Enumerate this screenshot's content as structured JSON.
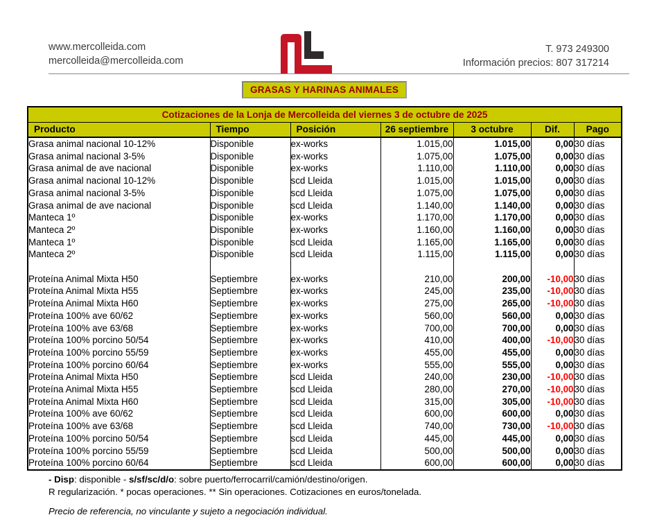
{
  "header": {
    "website": "www.mercolleida.com",
    "email": "mercolleida@mercolleida.com",
    "phone": "T. 973 249300",
    "price_info": "Información precios: 807 317214"
  },
  "badge": {
    "label": "GRASAS Y HARINAS ANIMALES"
  },
  "table": {
    "title": "Cotizaciones de la Lonja de Mercolleida del viernes 3 de octubre de 2025",
    "columns": [
      "Producto",
      "Tiempo",
      "Posición",
      "26 septiembre",
      "3 octubre",
      "Dif.",
      "Pago"
    ],
    "groups": [
      {
        "rows": [
          {
            "producto": "Grasa animal nacional 10-12%",
            "tiempo": "Disponible",
            "posicion": "ex-works",
            "sep26": "1.015,00",
            "oct3": "1.015,00",
            "dif": "0,00",
            "dif_negative": false,
            "pago": "30 días"
          },
          {
            "producto": "Grasa animal nacional 3-5%",
            "tiempo": "Disponible",
            "posicion": "ex-works",
            "sep26": "1.075,00",
            "oct3": "1.075,00",
            "dif": "0,00",
            "dif_negative": false,
            "pago": "30 días"
          },
          {
            "producto": "Grasa animal de ave nacional",
            "tiempo": "Disponible",
            "posicion": "ex-works",
            "sep26": "1.110,00",
            "oct3": "1.110,00",
            "dif": "0,00",
            "dif_negative": false,
            "pago": "30 días"
          },
          {
            "producto": "Grasa animal nacional 10-12%",
            "tiempo": "Disponible",
            "posicion": "scd Lleida",
            "sep26": "1.015,00",
            "oct3": "1.015,00",
            "dif": "0,00",
            "dif_negative": false,
            "pago": "30 días"
          },
          {
            "producto": "Grasa animal nacional 3-5%",
            "tiempo": "Disponible",
            "posicion": "scd Lleida",
            "sep26": "1.075,00",
            "oct3": "1.075,00",
            "dif": "0,00",
            "dif_negative": false,
            "pago": "30 días"
          },
          {
            "producto": "Grasa animal de ave nacional",
            "tiempo": "Disponible",
            "posicion": "scd Lleida",
            "sep26": "1.140,00",
            "oct3": "1.140,00",
            "dif": "0,00",
            "dif_negative": false,
            "pago": "30 días"
          },
          {
            "producto": "Manteca 1º",
            "tiempo": "Disponible",
            "posicion": "ex-works",
            "sep26": "1.170,00",
            "oct3": "1.170,00",
            "dif": "0,00",
            "dif_negative": false,
            "pago": "30 días"
          },
          {
            "producto": "Manteca 2º",
            "tiempo": "Disponible",
            "posicion": "ex-works",
            "sep26": "1.160,00",
            "oct3": "1.160,00",
            "dif": "0,00",
            "dif_negative": false,
            "pago": "30 días"
          },
          {
            "producto": "Manteca 1º",
            "tiempo": "Disponible",
            "posicion": "scd Lleida",
            "sep26": "1.165,00",
            "oct3": "1.165,00",
            "dif": "0,00",
            "dif_negative": false,
            "pago": "30 días"
          },
          {
            "producto": "Manteca 2º",
            "tiempo": "Disponible",
            "posicion": "scd Lleida",
            "sep26": "1.115,00",
            "oct3": "1.115,00",
            "dif": "0,00",
            "dif_negative": false,
            "pago": "30 días"
          }
        ]
      },
      {
        "rows": [
          {
            "producto": "Proteína Animal Mixta H50",
            "tiempo": "Septiembre",
            "posicion": "ex-works",
            "sep26": "210,00",
            "oct3": "200,00",
            "dif": "-10,00",
            "dif_negative": true,
            "pago": "30 días"
          },
          {
            "producto": "Proteína Animal Mixta H55",
            "tiempo": "Septiembre",
            "posicion": "ex-works",
            "sep26": "245,00",
            "oct3": "235,00",
            "dif": "-10,00",
            "dif_negative": true,
            "pago": "30 días"
          },
          {
            "producto": "Proteína Animal Mixta H60",
            "tiempo": "Septiembre",
            "posicion": "ex-works",
            "sep26": "275,00",
            "oct3": "265,00",
            "dif": "-10,00",
            "dif_negative": true,
            "pago": "30 días"
          },
          {
            "producto": "Proteína 100% ave 60/62",
            "tiempo": "Septiembre",
            "posicion": "ex-works",
            "sep26": "560,00",
            "oct3": "560,00",
            "dif": "0,00",
            "dif_negative": false,
            "pago": "30 días"
          },
          {
            "producto": "Proteína 100% ave 63/68",
            "tiempo": "Septiembre",
            "posicion": "ex-works",
            "sep26": "700,00",
            "oct3": "700,00",
            "dif": "0,00",
            "dif_negative": false,
            "pago": "30 días"
          },
          {
            "producto": "Proteína 100% porcino 50/54",
            "tiempo": "Septiembre",
            "posicion": "ex-works",
            "sep26": "410,00",
            "oct3": "400,00",
            "dif": "-10,00",
            "dif_negative": true,
            "pago": "30 días"
          },
          {
            "producto": "Proteína 100% porcino 55/59",
            "tiempo": "Septiembre",
            "posicion": "ex-works",
            "sep26": "455,00",
            "oct3": "455,00",
            "dif": "0,00",
            "dif_negative": false,
            "pago": "30 días"
          },
          {
            "producto": "Proteína 100% porcino 60/64",
            "tiempo": "Septiembre",
            "posicion": "ex-works",
            "sep26": "555,00",
            "oct3": "555,00",
            "dif": "0,00",
            "dif_negative": false,
            "pago": "30 días"
          },
          {
            "producto": "Proteína Animal Mixta H50",
            "tiempo": "Septiembre",
            "posicion": "scd Lleida",
            "sep26": "240,00",
            "oct3": "230,00",
            "dif": "-10,00",
            "dif_negative": true,
            "pago": "30 días"
          },
          {
            "producto": "Proteína Animal Mixta H55",
            "tiempo": "Septiembre",
            "posicion": "scd Lleida",
            "sep26": "280,00",
            "oct3": "270,00",
            "dif": "-10,00",
            "dif_negative": true,
            "pago": "30 días"
          },
          {
            "producto": "Proteína Animal Mixta H60",
            "tiempo": "Septiembre",
            "posicion": "scd Lleida",
            "sep26": "315,00",
            "oct3": "305,00",
            "dif": "-10,00",
            "dif_negative": true,
            "pago": "30 días"
          },
          {
            "producto": "Proteína 100% ave 60/62",
            "tiempo": "Septiembre",
            "posicion": "scd Lleida",
            "sep26": "600,00",
            "oct3": "600,00",
            "dif": "0,00",
            "dif_negative": false,
            "pago": "30 días"
          },
          {
            "producto": "Proteína 100% ave 63/68",
            "tiempo": "Septiembre",
            "posicion": "scd Lleida",
            "sep26": "740,00",
            "oct3": "730,00",
            "dif": "-10,00",
            "dif_negative": true,
            "pago": "30 días"
          },
          {
            "producto": "Proteína 100% porcino 50/54",
            "tiempo": "Septiembre",
            "posicion": "scd Lleida",
            "sep26": "445,00",
            "oct3": "445,00",
            "dif": "0,00",
            "dif_negative": false,
            "pago": "30 días"
          },
          {
            "producto": "Proteína 100% porcino 55/59",
            "tiempo": "Septiembre",
            "posicion": "scd Lleida",
            "sep26": "500,00",
            "oct3": "500,00",
            "dif": "0,00",
            "dif_negative": false,
            "pago": "30 días"
          },
          {
            "producto": "Proteína 100% porcino 60/64",
            "tiempo": "Septiembre",
            "posicion": "scd Lleida",
            "sep26": "600,00",
            "oct3": "600,00",
            "dif": "0,00",
            "dif_negative": false,
            "pago": "30 días"
          }
        ]
      }
    ]
  },
  "footer": {
    "note1_parts": [
      {
        "text": "- Disp",
        "bold": true
      },
      {
        "text": ": disponible - ",
        "bold": false
      },
      {
        "text": "s/sf/sc/d/o",
        "bold": true
      },
      {
        "text": ": sobre puerto/ferrocarril/camión/destino/origen.",
        "bold": false
      }
    ],
    "note2": "R regularización. * pocas operaciones. ** Sin operaciones. Cotizaciones en euros/tonelada.",
    "legal": "Precio de referencia, no vinculante y sujeto a negociación individual."
  },
  "colors": {
    "accent_yellow": "#cbcc00",
    "title_dark_red": "#990000",
    "negative_red": "#ff0000",
    "logo_red": "#c41627",
    "logo_black": "#2f2a2c"
  }
}
